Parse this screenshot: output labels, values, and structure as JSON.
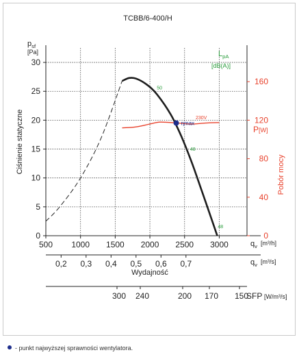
{
  "chart_data": {
    "type": "line",
    "title": "TCBB/6-400/H",
    "y_axis": {
      "symbol": "p",
      "subscript": "sf",
      "unit": "[Pa]",
      "label": "Ciśnienie statyczne",
      "ticks": [
        0,
        5,
        10,
        15,
        20,
        25,
        30
      ],
      "range": [
        0,
        32.5
      ]
    },
    "x_axis": {
      "symbol": "q",
      "subscript": "v",
      "unit": "[m³/h]",
      "ticks": [
        500,
        1000,
        1500,
        2000,
        2500,
        3000
      ],
      "range": [
        500,
        3400
      ]
    },
    "x_axis_2": {
      "symbol": "q",
      "subscript": "v",
      "unit": "[m³/s]",
      "ticks": [
        "0,2",
        "0,3",
        "0,4",
        "0,5",
        "0,6",
        "0,7"
      ],
      "label": "Wydajność"
    },
    "sfp_axis": {
      "ticks": [
        "300",
        "240",
        "200",
        "170",
        "150"
      ],
      "label": "SFP",
      "unit": "[W/m³/s]"
    },
    "right_axis": {
      "symbol": "P",
      "unit": "[W]",
      "label": "Pobór mocy",
      "ticks": [
        0,
        40,
        80,
        120,
        160
      ],
      "range": [
        0,
        195
      ]
    },
    "sound_label": {
      "symbol": "L",
      "subscript": "pA",
      "unit": "[dB(A)]"
    },
    "pressure_curve_dashed": [
      [
        500,
        2.5
      ],
      [
        700,
        5
      ],
      [
        1000,
        10
      ],
      [
        1300,
        17
      ],
      [
        1600,
        26.8
      ]
    ],
    "pressure_curve_solid": [
      [
        1600,
        26.8
      ],
      [
        1700,
        27.3
      ],
      [
        1800,
        27.2
      ],
      [
        1950,
        26.2
      ],
      [
        2100,
        24.5
      ],
      [
        2300,
        21
      ],
      [
        2450,
        17.3
      ],
      [
        2600,
        12.8
      ],
      [
        2750,
        7.7
      ],
      [
        2900,
        2.5
      ],
      [
        3000,
        -1
      ]
    ],
    "power_curve": [
      [
        1600,
        112
      ],
      [
        1800,
        113
      ],
      [
        2000,
        116
      ],
      [
        2150,
        118
      ],
      [
        2400,
        117
      ],
      [
        2600,
        116
      ],
      [
        2800,
        117
      ],
      [
        3000,
        117.5
      ]
    ],
    "eta_max": {
      "x": 2380,
      "y": 19.5,
      "label": "ηmax"
    },
    "sound_annotations": [
      {
        "text": "50",
        "x": 2100,
        "y": 25.3
      },
      {
        "text": "48",
        "x": 2580,
        "y": 14.7
      },
      {
        "text": "48",
        "x": 2980,
        "y": 1.3
      }
    ],
    "power_annotation": {
      "text": "230V",
      "x": 2660,
      "y": 121
    },
    "legend_note": "- punkt najwyższej sprawności wentylatora."
  }
}
